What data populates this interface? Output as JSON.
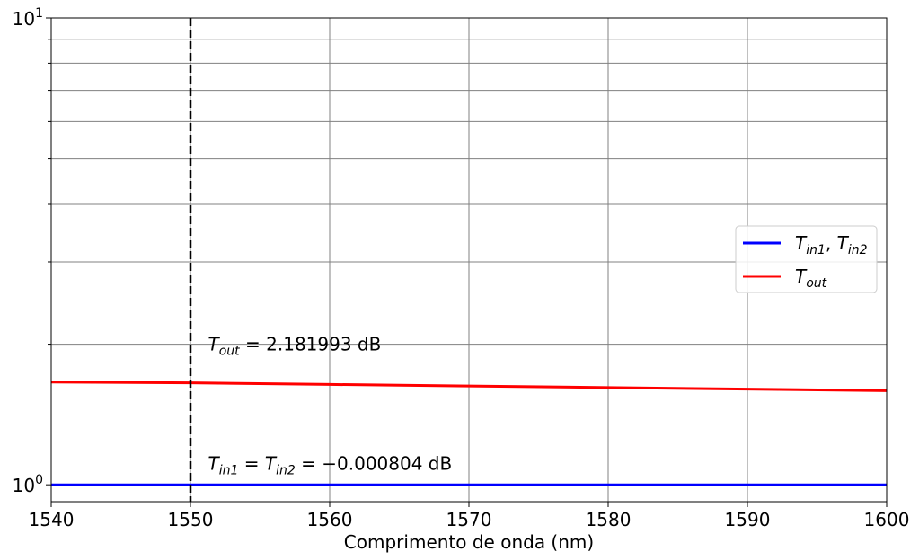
{
  "chart_data": {
    "type": "line",
    "xlabel": "Comprimento de onda (nm)",
    "ylabel": "",
    "xlim": [
      1540,
      1600
    ],
    "ylim": [
      0.92,
      10
    ],
    "yscale": "log",
    "grid": true,
    "x_ticks": [
      1540,
      1550,
      1560,
      1570,
      1580,
      1590,
      1600
    ],
    "y_tick_labels": [
      {
        "value": 1,
        "base": "10",
        "exp": "0"
      },
      {
        "value": 10,
        "base": "10",
        "exp": "1"
      }
    ],
    "y_minor_ticks": [
      2,
      3,
      4,
      5,
      6,
      7,
      8,
      9
    ],
    "vline": {
      "x": 1550,
      "style": "dashed",
      "color": "#000000"
    },
    "series": [
      {
        "name": "T_in1, T_in2",
        "color": "#0000ff",
        "x": [
          1540,
          1550,
          1560,
          1570,
          1580,
          1590,
          1600
        ],
        "values": [
          0.9998,
          0.9998,
          0.9997,
          0.9998,
          0.9996,
          0.9997,
          0.9996
        ]
      },
      {
        "name": "T_out",
        "color": "#ff0000",
        "x": [
          1540,
          1550,
          1560,
          1570,
          1580,
          1590,
          1600
        ],
        "values": [
          1.66,
          1.653,
          1.64,
          1.628,
          1.615,
          1.603,
          1.59
        ]
      }
    ],
    "legend": {
      "position": "center-right",
      "entries": [
        {
          "color": "#0000ff",
          "parts": [
            [
              "T",
              ""
            ],
            [
              "in1",
              "sub"
            ],
            [
              ", ",
              "up"
            ],
            [
              "T",
              ""
            ],
            [
              "in2",
              "sub"
            ]
          ]
        },
        {
          "color": "#ff0000",
          "parts": [
            [
              "T",
              ""
            ],
            [
              "out",
              "sub"
            ]
          ]
        }
      ]
    },
    "annotations": [
      {
        "x": 1551,
        "y": 2.0,
        "parts": [
          [
            "T",
            "i"
          ],
          [
            "out",
            "sub"
          ],
          [
            " = ",
            "up"
          ],
          [
            "2.181993 dB",
            "up"
          ]
        ]
      },
      {
        "x": 1551,
        "y": 1.11,
        "parts": [
          [
            "T",
            "i"
          ],
          [
            "in1",
            "sub"
          ],
          [
            " = ",
            "up"
          ],
          [
            "T",
            "i"
          ],
          [
            "in2",
            "sub"
          ],
          [
            " = ",
            "up"
          ],
          [
            "−0.000804 dB",
            "up"
          ]
        ]
      }
    ]
  }
}
